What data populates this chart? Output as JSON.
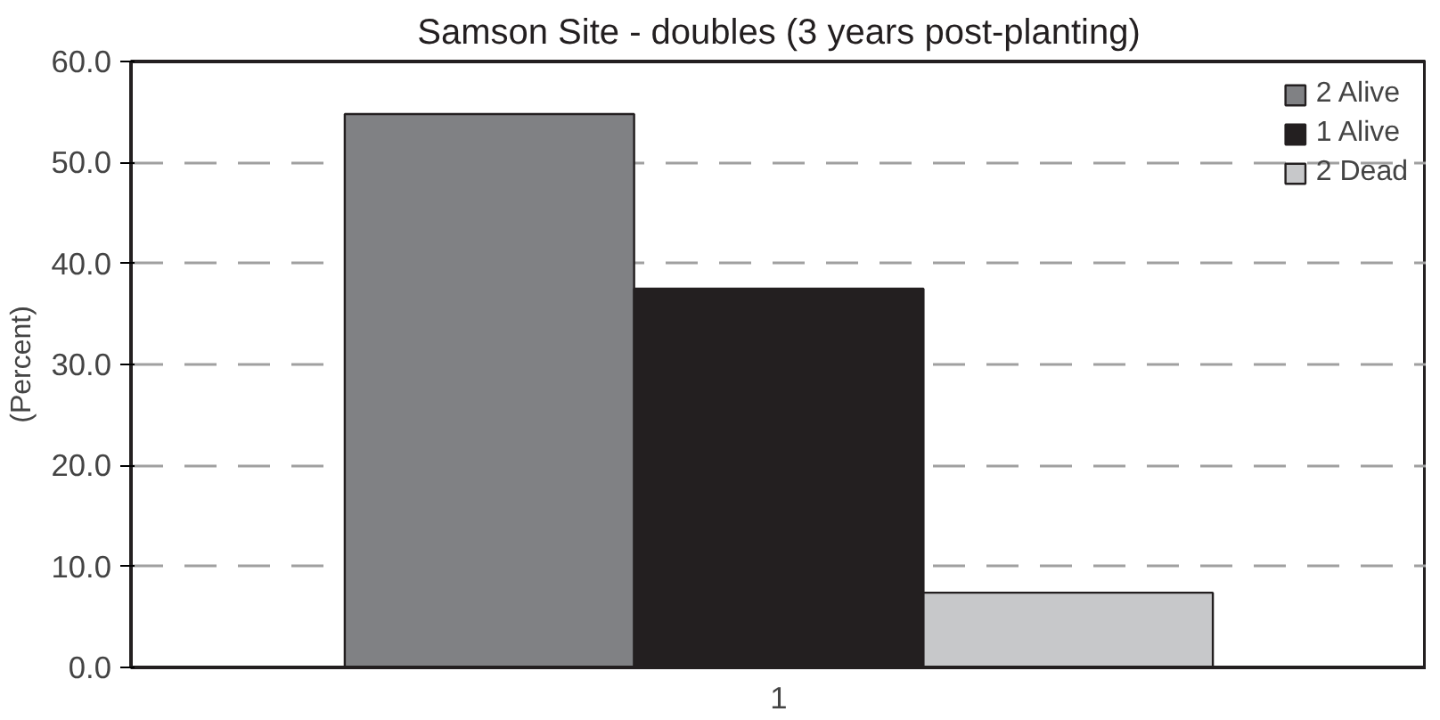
{
  "chart_data": {
    "type": "bar",
    "title": "Samson Site - doubles (3 years post-planting)",
    "ylabel": "(Percent)",
    "categories": [
      "1"
    ],
    "series": [
      {
        "name": "2 Alive",
        "color": "#808184",
        "values": [
          54.8
        ]
      },
      {
        "name": "1 Alive",
        "color": "#231f20",
        "values": [
          37.5
        ]
      },
      {
        "name": "2 Dead",
        "color": "#c7c8ca",
        "values": [
          7.4
        ]
      }
    ],
    "ylim": [
      0,
      60
    ],
    "yticks": [
      {
        "value": 0,
        "label": "0.0"
      },
      {
        "value": 10,
        "label": "10.0"
      },
      {
        "value": 20,
        "label": "20.0"
      },
      {
        "value": 30,
        "label": "30.0"
      },
      {
        "value": 40,
        "label": "40.0"
      },
      {
        "value": 50,
        "label": "50.0"
      },
      {
        "value": 60,
        "label": "60.0"
      }
    ],
    "grid": "y",
    "legend": "top right"
  }
}
